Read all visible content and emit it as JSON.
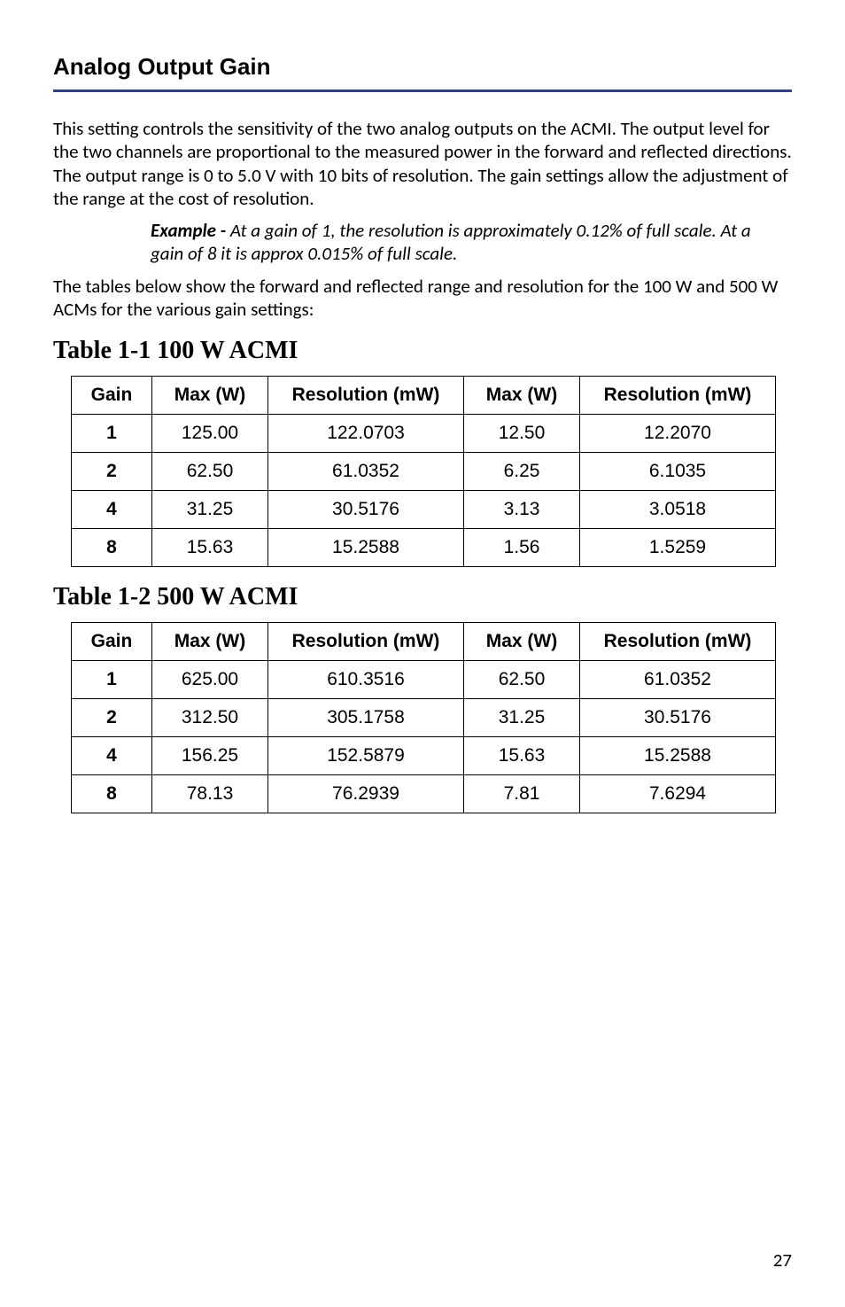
{
  "section_title": "Analog Output Gain",
  "title_rule_color": "#2f3e8f",
  "paragraph1": "This setting controls the sensitivity of the two analog outputs on the ACMI. The output level for the two channels are proportional to the measured power in the forward and reflected directions. The output range is 0 to 5.0 V with 10 bits of resolution. The gain settings allow the adjustment of the range at the cost of resolution.",
  "example_label": "Example - ",
  "example_text": "At a gain of 1, the resolution is approximately 0.12% of full scale. At a gain of 8 it is approx 0.015% of full scale.",
  "paragraph2": "The tables below show the forward and reflected range and resolution for the 100 W and 500 W ACMs for the various gain settings:",
  "table1": {
    "caption": "Table 1-1   100 W ACMI",
    "headers": [
      "Gain",
      "Max (W)",
      "Resolution (mW)",
      "Max (W)",
      "Resolution (mW)"
    ],
    "rows": [
      [
        "1",
        "125.00",
        "122.0703",
        "12.50",
        "12.2070"
      ],
      [
        "2",
        "62.50",
        "61.0352",
        "6.25",
        "6.1035"
      ],
      [
        "4",
        "31.25",
        "30.5176",
        "3.13",
        "3.0518"
      ],
      [
        "8",
        "15.63",
        "15.2588",
        "1.56",
        "1.5259"
      ]
    ]
  },
  "table2": {
    "caption": "Table 1-2   500 W ACMI",
    "headers": [
      "Gain",
      "Max (W)",
      "Resolution (mW)",
      "Max (W)",
      "Resolution (mW)"
    ],
    "rows": [
      [
        "1",
        "625.00",
        "610.3516",
        "62.50",
        "61.0352"
      ],
      [
        "2",
        "312.50",
        "305.1758",
        "31.25",
        "30.5176"
      ],
      [
        "4",
        "156.25",
        "152.5879",
        "15.63",
        "15.2588"
      ],
      [
        "8",
        "78.13",
        "76.2939",
        "7.81",
        "7.6294"
      ]
    ]
  },
  "page_number": "27"
}
